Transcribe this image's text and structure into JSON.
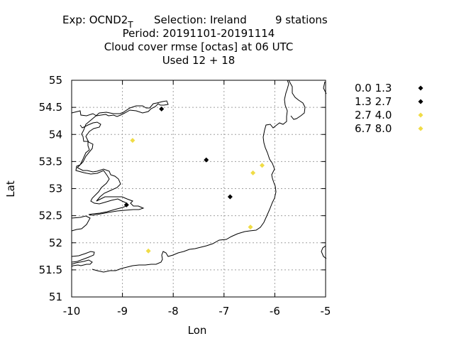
{
  "chart_data": {
    "type": "scatter",
    "title_lines": [
      "Period: 20191101-20191114",
      "Cloud cover rmse [octas] at  06 UTC",
      "Used  12 + 18"
    ],
    "header": {
      "exp_prefix": "Exp: OCND2",
      "exp_subscript": "T",
      "selection": "Selection: Ireland",
      "stations": "9 stations"
    },
    "xlabel": "Lon",
    "ylabel": "Lat",
    "xlim": [
      -10,
      -5
    ],
    "ylim": [
      51,
      55
    ],
    "x_ticks": [
      -10,
      -9,
      -8,
      -7,
      -6,
      -5
    ],
    "y_ticks": [
      51,
      51.5,
      52,
      52.5,
      53,
      53.5,
      54,
      54.5,
      55
    ],
    "grid": true,
    "legend_position": "right",
    "series": [
      {
        "name": "0.0 1.3",
        "color": "#000000",
        "points": []
      },
      {
        "name": "1.3 2.7",
        "color": "#000000",
        "points": [
          {
            "x": -8.23,
            "y": 54.47
          },
          {
            "x": -7.35,
            "y": 53.53
          },
          {
            "x": -6.88,
            "y": 52.85
          },
          {
            "x": -8.92,
            "y": 52.7
          }
        ]
      },
      {
        "name": "2.7 4.0",
        "color": "#f0dc46",
        "points": [
          {
            "x": -8.8,
            "y": 53.89
          },
          {
            "x": -6.25,
            "y": 53.43
          },
          {
            "x": -6.43,
            "y": 53.29
          },
          {
            "x": -6.48,
            "y": 52.29
          },
          {
            "x": -8.49,
            "y": 51.85
          }
        ]
      },
      {
        "name": "6.7 8.0",
        "color": "#f0dc46",
        "points": []
      }
    ]
  }
}
